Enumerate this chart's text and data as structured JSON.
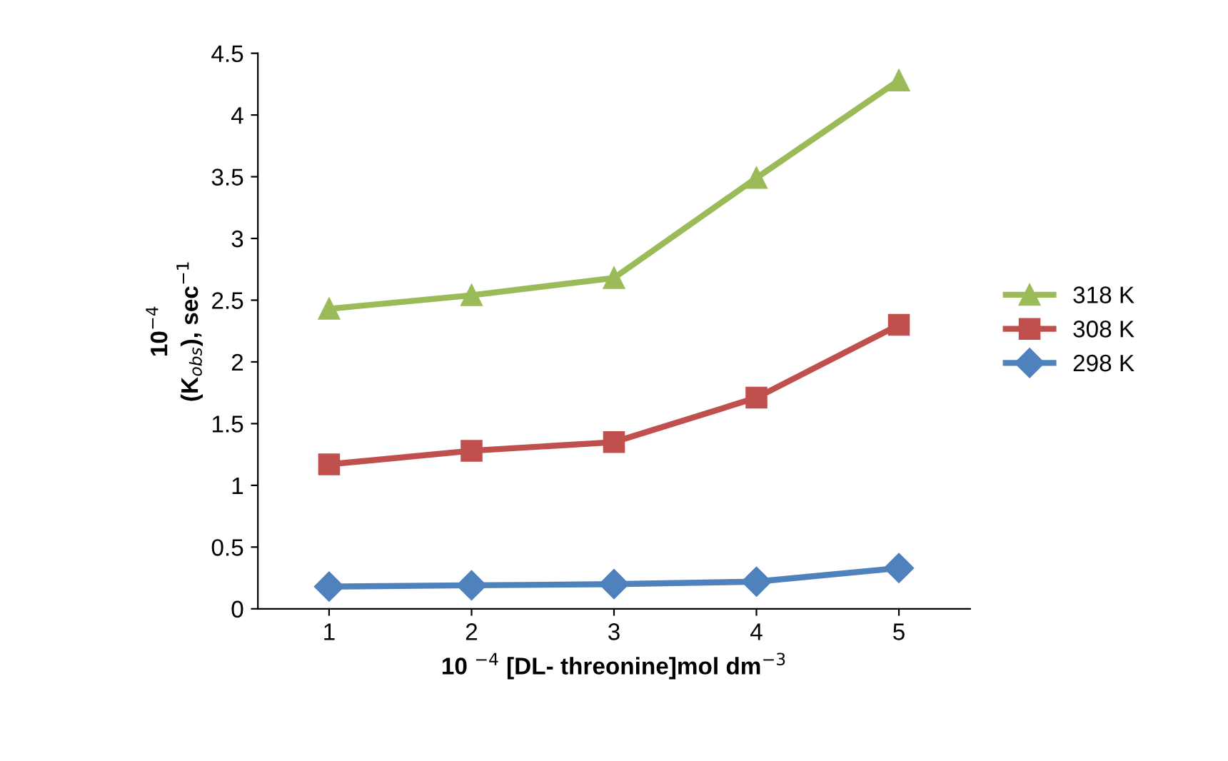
{
  "chart_data": {
    "type": "line",
    "xlabel": "10 $^{−4}$ [DL- threonine]mol dm$^{−3}$",
    "ylabel": "10$^{−4}$\n(K$_{obs}$), sec$^{−1}$",
    "categories": [
      "1",
      "2",
      "3",
      "4",
      "5"
    ],
    "series": [
      {
        "name": "318 K",
        "color": "#9bbb59",
        "marker": "triangle",
        "values": [
          2.43,
          2.54,
          2.68,
          3.49,
          4.28
        ]
      },
      {
        "name": "308 K",
        "color": "#c0504d",
        "marker": "square",
        "values": [
          1.17,
          1.28,
          1.35,
          1.71,
          2.3
        ]
      },
      {
        "name": "298 K",
        "color": "#4f81bd",
        "marker": "diamond",
        "values": [
          0.18,
          0.19,
          0.2,
          0.22,
          0.33
        ]
      }
    ],
    "ylim": [
      0,
      4.5
    ],
    "yticks": [
      0,
      0.5,
      1,
      1.5,
      2,
      2.5,
      3,
      3.5,
      4,
      4.5
    ],
    "grid": false,
    "legend": "right",
    "line_style": "solid"
  }
}
